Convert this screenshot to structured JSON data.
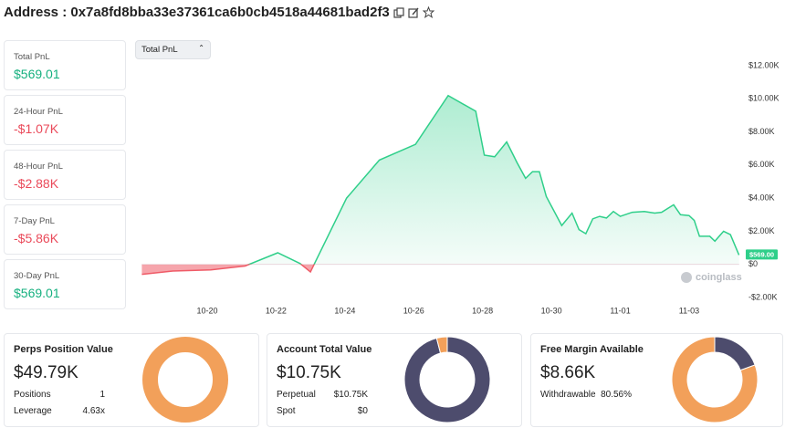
{
  "header": {
    "title": "Address : 0x7a8fd8bba33e37361ca6b0cb4518a44681bad2f3"
  },
  "summary_cards": [
    {
      "label": "Total PnL",
      "value": "$569.01",
      "tone": "up"
    },
    {
      "label": "24-Hour PnL",
      "value": "-$1.07K",
      "tone": "down"
    },
    {
      "label": "48-Hour PnL",
      "value": "-$2.88K",
      "tone": "down"
    },
    {
      "label": "7-Day PnL",
      "value": "-$5.86K",
      "tone": "down"
    },
    {
      "label": "30-Day PnL",
      "value": "$569.01",
      "tone": "up"
    }
  ],
  "selector": {
    "label": "Total PnL"
  },
  "chart_data": {
    "type": "area",
    "x": [
      18.1,
      19.0,
      20.1,
      21.1,
      22.05,
      22.7,
      23.0,
      24.05,
      25.0,
      26.05,
      27.0,
      27.8,
      28.05,
      28.35,
      28.7,
      29.0,
      29.25,
      29.45,
      29.65,
      29.85,
      30.3,
      30.6,
      30.8,
      31.0,
      31.2,
      31.4,
      31.6,
      31.8,
      32.0,
      32.35,
      32.7,
      33.0,
      33.2,
      33.55,
      33.75,
      34.0,
      34.15,
      34.3,
      34.6,
      34.75,
      35.0,
      35.2,
      35.45
    ],
    "values": [
      -600,
      -400,
      -330,
      -100,
      700,
      50,
      -450,
      4000,
      6300,
      7250,
      10200,
      9250,
      6600,
      6500,
      7400,
      6150,
      5200,
      5600,
      5600,
      4100,
      2350,
      3100,
      2100,
      1850,
      2750,
      2900,
      2800,
      3200,
      2900,
      3150,
      3200,
      3100,
      3150,
      3600,
      3000,
      2950,
      2650,
      1700,
      1700,
      1400,
      2000,
      1800,
      569
    ],
    "current_label": "$569.00",
    "color": "#2fcf8a",
    "negative_color": "#ef5b67",
    "xlim": [
      18.09,
      35.46
    ],
    "xticks": [
      {
        "value": 20,
        "label": "10-20"
      },
      {
        "value": 22,
        "label": "10-22"
      },
      {
        "value": 24,
        "label": "10-24"
      },
      {
        "value": 26,
        "label": "10-26"
      },
      {
        "value": 28,
        "label": "10-28"
      },
      {
        "value": 30,
        "label": "10-30"
      },
      {
        "value": 32,
        "label": "11-01"
      },
      {
        "value": 34,
        "label": "11-03"
      }
    ],
    "ylim": [
      -2000,
      12000
    ],
    "yticks": [
      {
        "value": -2000,
        "label": "-$2.00K"
      },
      {
        "value": 0,
        "label": "$0"
      },
      {
        "value": 2000,
        "label": "$2.00K"
      },
      {
        "value": 4000,
        "label": "$4.00K"
      },
      {
        "value": 6000,
        "label": "$6.00K"
      },
      {
        "value": 8000,
        "label": "$8.00K"
      },
      {
        "value": 10000,
        "label": "$10.00K"
      },
      {
        "value": 12000,
        "label": "$12.00K"
      }
    ],
    "grid": false,
    "watermark": "coinglass"
  },
  "bottom_cards": [
    {
      "title": "Perps Position Value",
      "value": "$49.79K",
      "rows": [
        [
          "Positions",
          "1"
        ],
        [
          "Leverage",
          "4.63x"
        ]
      ],
      "donut": {
        "values": [
          100
        ],
        "colors": [
          "#f2a05a"
        ]
      }
    },
    {
      "title": "Account Total Value",
      "value": "$10.75K",
      "rows": [
        [
          "Perpetual",
          "$10.75K"
        ],
        [
          "Spot",
          "$0"
        ]
      ],
      "donut": {
        "values": [
          96,
          4
        ],
        "colors": [
          "#4d4c6d",
          "#f2a05a"
        ]
      }
    },
    {
      "title": "Free Margin Available",
      "value": "$8.66K",
      "rows": [
        [
          "Withdrawable",
          "80.56%"
        ]
      ],
      "donut": {
        "values": [
          19.44,
          80.56
        ],
        "colors": [
          "#4d4c6d",
          "#f2a05a"
        ]
      }
    }
  ]
}
